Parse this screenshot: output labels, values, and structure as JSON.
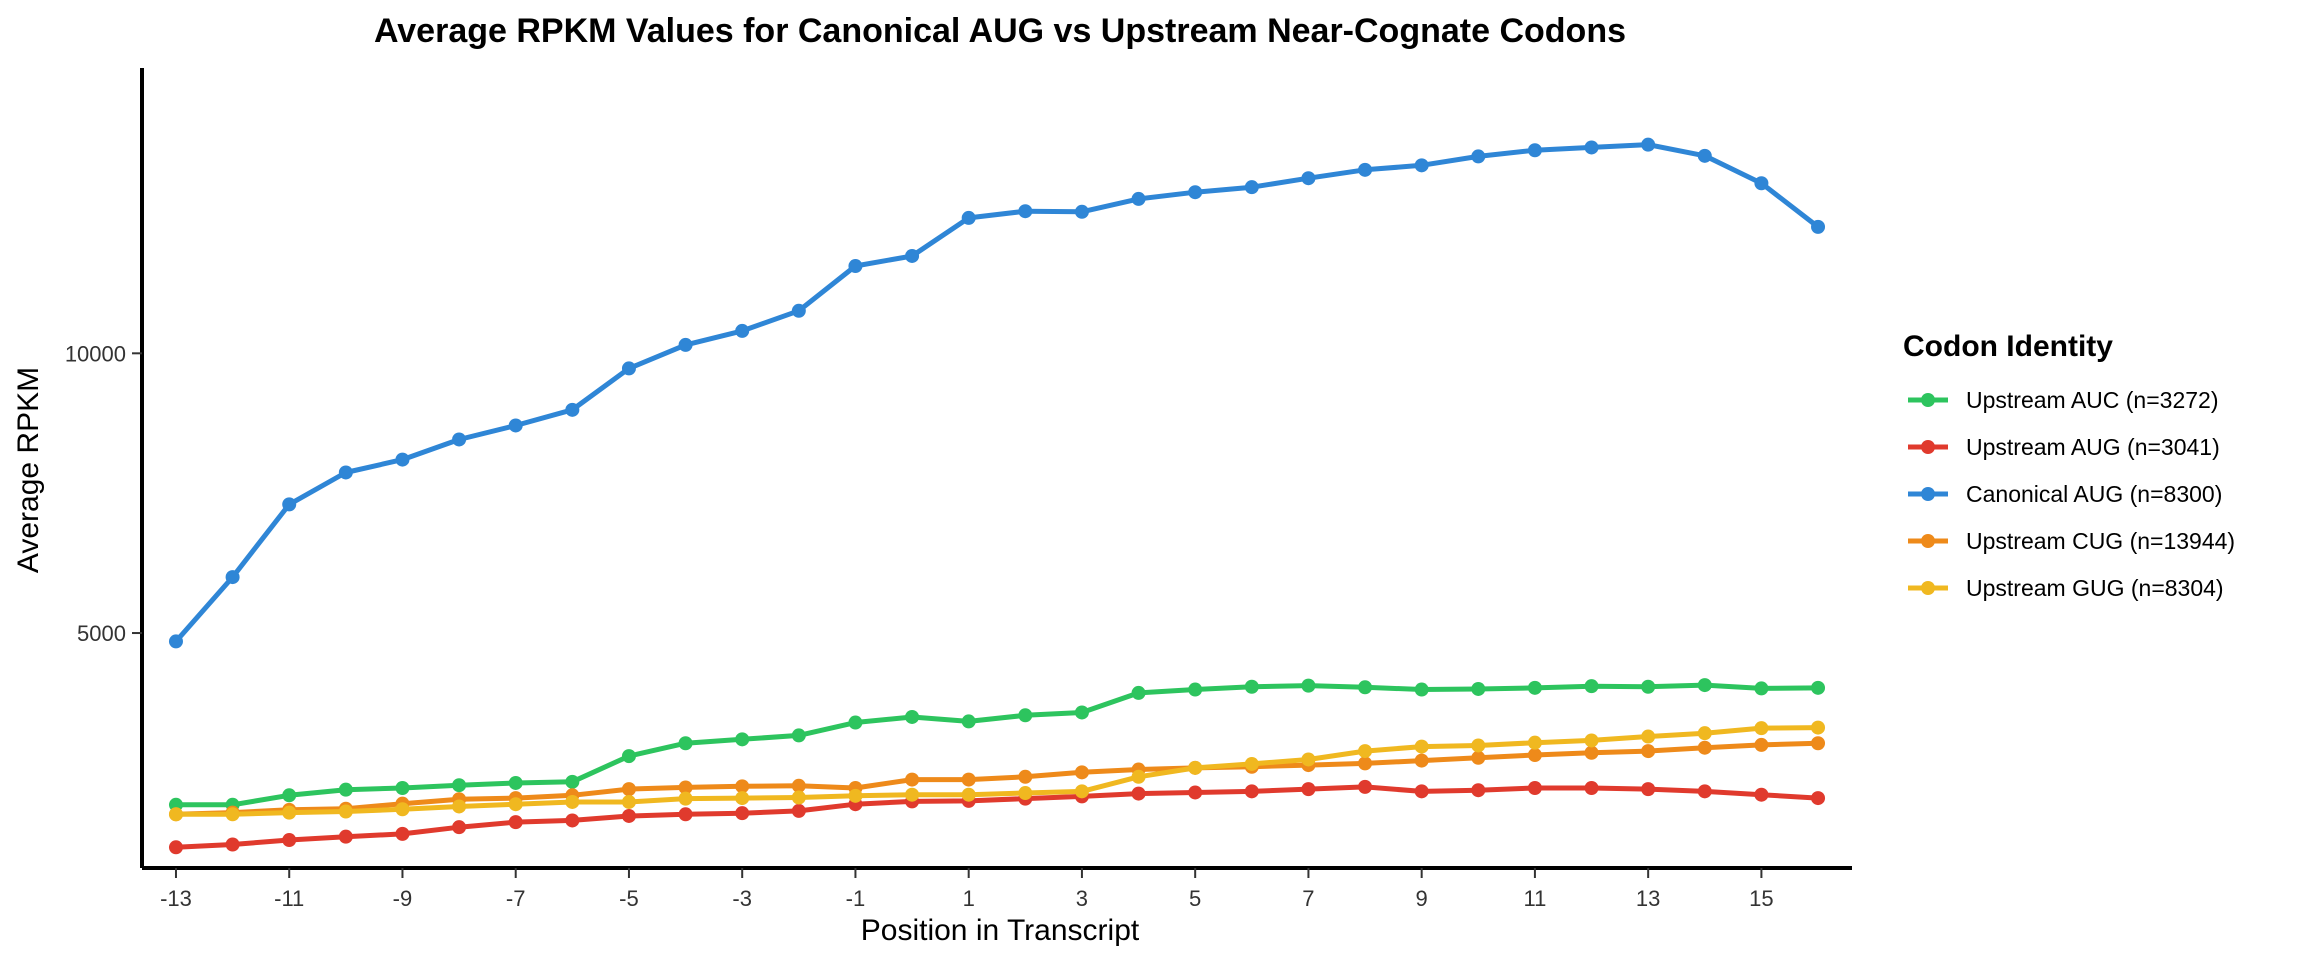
{
  "chart_data": {
    "type": "line",
    "title": "Average RPKM Values for Canonical AUG vs Upstream Near-Cognate Codons",
    "xlabel": "Position in Transcript",
    "ylabel": "Average RPKM",
    "xlim": [
      -13.6,
      16.6
    ],
    "ylim": [
      800,
      15100
    ],
    "x_ticks": [
      -13,
      -11,
      -9,
      -7,
      -5,
      -3,
      -1,
      1,
      3,
      5,
      7,
      9,
      11,
      13,
      15
    ],
    "y_ticks": [
      5000,
      10000
    ],
    "grid": false,
    "legend": {
      "title": "Codon Identity",
      "position": "right"
    },
    "x": [
      -13,
      -12,
      -11,
      -10,
      -9,
      -8,
      -7,
      -6,
      -5,
      -4,
      -3,
      -2,
      -1,
      0,
      1,
      2,
      3,
      4,
      5,
      6,
      7,
      8,
      9,
      10,
      11,
      12,
      13,
      14,
      15,
      16
    ],
    "series": [
      {
        "name": "Upstream AUC (n=3272)",
        "color": "#2dc45e",
        "values": [
          1930,
          1930,
          2100,
          2200,
          2230,
          2280,
          2320,
          2340,
          2800,
          3030,
          3100,
          3170,
          3400,
          3500,
          3420,
          3530,
          3580,
          3930,
          3990,
          4040,
          4060,
          4030,
          3990,
          4000,
          4020,
          4050,
          4040,
          4070,
          4010,
          4020
        ]
      },
      {
        "name": "Upstream AUG (n=3041)",
        "color": "#e03a2d",
        "values": [
          1170,
          1220,
          1300,
          1360,
          1410,
          1530,
          1620,
          1650,
          1730,
          1760,
          1780,
          1820,
          1940,
          1990,
          2000,
          2040,
          2080,
          2130,
          2150,
          2170,
          2210,
          2250,
          2170,
          2190,
          2230,
          2230,
          2210,
          2170,
          2110,
          2050
        ]
      },
      {
        "name": "Canonical AUG (n=8300)",
        "color": "#2f86d6",
        "values": [
          4850,
          6000,
          7300,
          7870,
          8100,
          8460,
          8710,
          8990,
          9730,
          10150,
          10400,
          10760,
          11560,
          11740,
          12420,
          12540,
          12530,
          12760,
          12880,
          12970,
          13130,
          13280,
          13360,
          13520,
          13630,
          13680,
          13730,
          13530,
          13040,
          12260
        ]
      },
      {
        "name": "Upstream CUG (n=13944)",
        "color": "#ee8a1a",
        "values": [
          1760,
          1790,
          1840,
          1860,
          1950,
          2030,
          2050,
          2100,
          2210,
          2240,
          2260,
          2270,
          2230,
          2380,
          2380,
          2430,
          2510,
          2560,
          2590,
          2610,
          2640,
          2670,
          2720,
          2770,
          2820,
          2860,
          2890,
          2950,
          3000,
          3030
        ]
      },
      {
        "name": "Upstream GUG (n=8304)",
        "color": "#f0b820",
        "values": [
          1760,
          1760,
          1790,
          1810,
          1850,
          1900,
          1940,
          1980,
          1980,
          2040,
          2050,
          2060,
          2090,
          2110,
          2110,
          2140,
          2170,
          2430,
          2590,
          2660,
          2740,
          2890,
          2970,
          2990,
          3040,
          3080,
          3150,
          3210,
          3300,
          3310
        ]
      }
    ]
  }
}
